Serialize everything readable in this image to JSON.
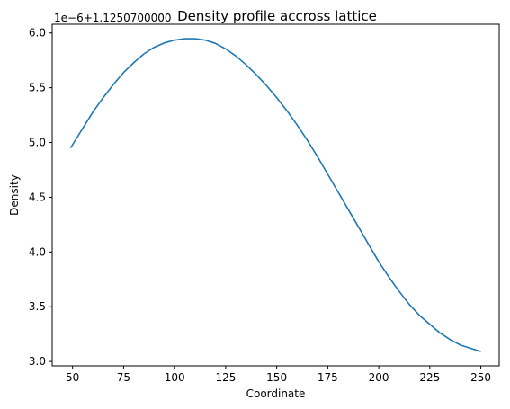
{
  "chart_data": {
    "type": "line",
    "title": "Density profile accross lattice",
    "xlabel": "Coordinate",
    "ylabel": "Density",
    "offset_label": "1e−6+1.1250700000",
    "xlim": [
      40,
      259
    ],
    "ylim": [
      2.96,
      6.08
    ],
    "xticks": [
      50,
      75,
      100,
      125,
      150,
      175,
      200,
      225,
      250
    ],
    "xtick_labels": [
      "50",
      "75",
      "100",
      "125",
      "150",
      "175",
      "200",
      "225",
      "250"
    ],
    "yticks": [
      3.0,
      3.5,
      4.0,
      4.5,
      5.0,
      5.5,
      6.0
    ],
    "ytick_labels": [
      "3.0",
      "3.5",
      "4.0",
      "4.5",
      "5.0",
      "5.5",
      "6.0"
    ],
    "grid": false,
    "series": [
      {
        "name": "density",
        "color": "#1f77b4",
        "x": [
          49,
          55,
          60,
          65,
          70,
          75,
          80,
          85,
          90,
          95,
          100,
          105,
          110,
          115,
          120,
          125,
          130,
          135,
          140,
          145,
          150,
          155,
          160,
          165,
          170,
          175,
          180,
          185,
          190,
          195,
          200,
          205,
          210,
          215,
          220,
          225,
          230,
          235,
          240,
          245,
          250
        ],
        "y": [
          4.95,
          5.13,
          5.28,
          5.41,
          5.53,
          5.64,
          5.73,
          5.81,
          5.87,
          5.91,
          5.935,
          5.948,
          5.948,
          5.935,
          5.905,
          5.855,
          5.79,
          5.71,
          5.62,
          5.52,
          5.41,
          5.29,
          5.16,
          5.02,
          4.87,
          4.71,
          4.55,
          4.39,
          4.23,
          4.07,
          3.91,
          3.77,
          3.64,
          3.52,
          3.42,
          3.34,
          3.26,
          3.2,
          3.15,
          3.12,
          3.09
        ]
      }
    ]
  }
}
